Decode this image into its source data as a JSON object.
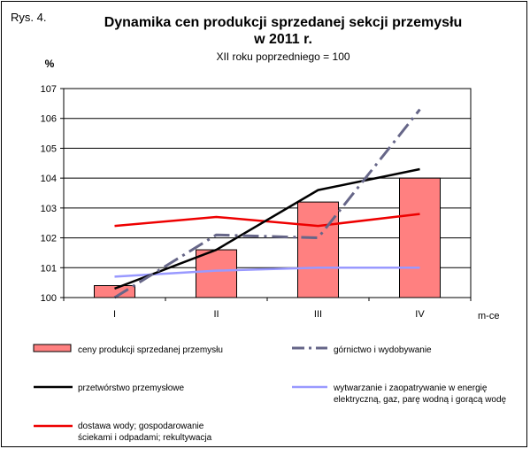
{
  "figure_label": "Rys. 4.",
  "title_line1": "Dynamika cen produkcji sprzedanej sekcji przemysłu",
  "title_line2": "w 2011 r.",
  "subtitle": "XII roku poprzedniego = 100",
  "colors": {
    "bar_fill": "#ff8080",
    "gornictwo": "#666688",
    "przetworstwo": "#000000",
    "wytwarzanie": "#9999ff",
    "dostawa": "#ee0000"
  },
  "chart_data": {
    "type": "bar",
    "ylabel": "%",
    "xlabel": "m-ce",
    "categories": [
      "I",
      "II",
      "III",
      "IV"
    ],
    "ylim": [
      100,
      107
    ],
    "yticks": [
      "100",
      "101",
      "102",
      "103",
      "104",
      "105",
      "106",
      "107"
    ],
    "grid": true,
    "legend_position": "bottom",
    "series": [
      {
        "name": "ceny produkcji sprzedanej przemysłu",
        "type": "bar",
        "values": [
          100.4,
          101.6,
          103.2,
          104.0
        ]
      },
      {
        "name": "górnictwo i wydobywanie",
        "type": "line",
        "style": "dashdot",
        "values": [
          100.0,
          102.1,
          102.0,
          106.3
        ]
      },
      {
        "name": "przetwórstwo przemysłowe",
        "type": "line",
        "style": "solid",
        "values": [
          100.3,
          101.6,
          103.6,
          104.3
        ]
      },
      {
        "name": "wytwarzanie i zaopatrywanie w energię elektryczną, gaz, parę wodną i gorącą wodę",
        "type": "line",
        "style": "solid",
        "values": [
          100.7,
          100.9,
          101.0,
          101.0
        ]
      },
      {
        "name": "dostawa wody; gospodarowanie ściekami i odpadami; rekultywacja",
        "type": "line",
        "style": "solid",
        "values": [
          102.4,
          102.7,
          102.4,
          102.8
        ]
      }
    ]
  },
  "legend": {
    "bar_label": "ceny produkcji sprzedanej przemysłu",
    "gornictwo_label": "górnictwo i wydobywanie",
    "przetworstwo_label": "przetwórstwo przemysłowe",
    "wytwarzanie_label_line1": "wytwarzanie  i zaopatrywanie  w energię",
    "wytwarzanie_label_line2": "elektryczną, gaz, parę wodną i gorącą wodę",
    "dostawa_label_line1": "dostawa wody; gospodarowanie",
    "dostawa_label_line2": "ściekami i odpadami; rekultywacja"
  }
}
